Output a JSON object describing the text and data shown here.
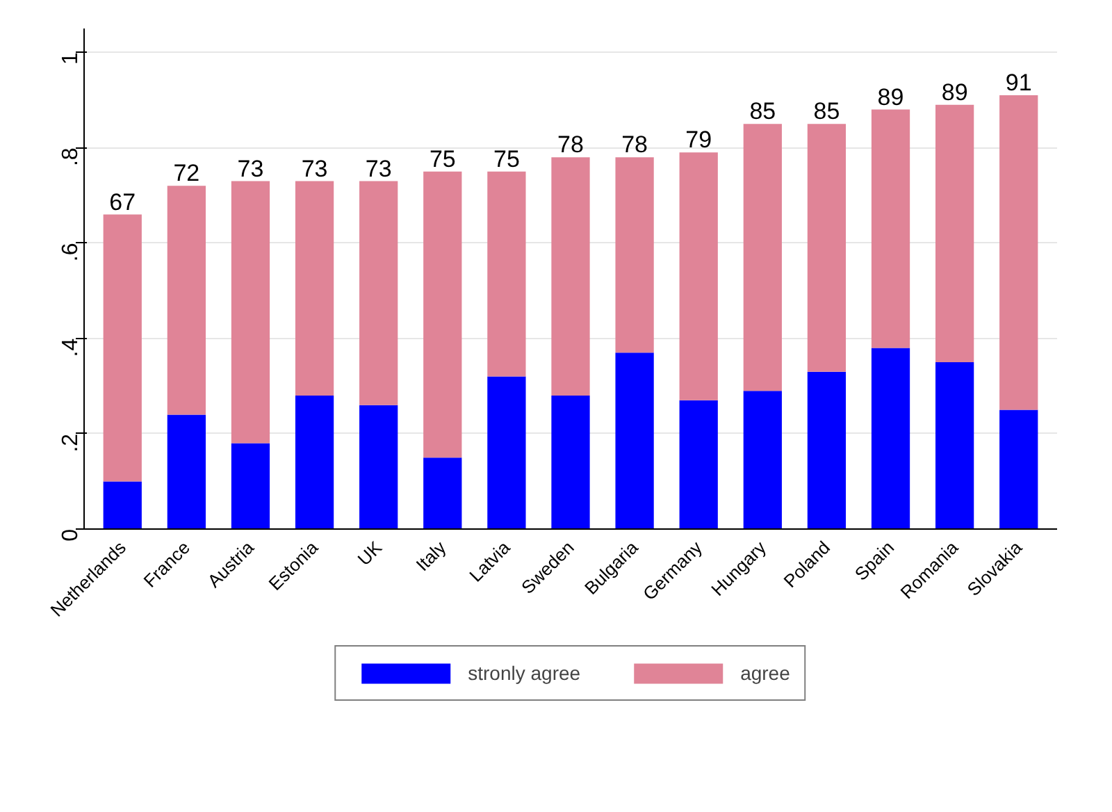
{
  "chart_data": {
    "type": "bar",
    "stacked": true,
    "categories": [
      "Netherlands",
      "France",
      "Austria",
      "Estonia",
      "UK",
      "Italy",
      "Latvia",
      "Sweden",
      "Bulgaria",
      "Germany",
      "Hungary",
      "Poland",
      "Spain",
      "Romania",
      "Slovakia"
    ],
    "series": [
      {
        "name": "stronly agree",
        "color": "#0000ff",
        "values": [
          0.1,
          0.24,
          0.18,
          0.28,
          0.26,
          0.15,
          0.32,
          0.28,
          0.37,
          0.27,
          0.29,
          0.33,
          0.38,
          0.35,
          0.25
        ]
      },
      {
        "name": "agree",
        "color": "#e08497",
        "values": [
          0.56,
          0.48,
          0.55,
          0.45,
          0.47,
          0.6,
          0.43,
          0.5,
          0.41,
          0.52,
          0.56,
          0.52,
          0.5,
          0.54,
          0.66
        ]
      }
    ],
    "totals": [
      "67",
      "72",
      "73",
      "73",
      "73",
      "75",
      "75",
      "78",
      "78",
      "79",
      "85",
      "85",
      "89",
      "89",
      "91"
    ],
    "ylim": [
      0,
      1.05
    ],
    "yticks": [
      0,
      {
        "value": 0.2,
        "label": ".2"
      },
      {
        "value": 0.4,
        "label": ".4"
      },
      {
        "value": 0.6,
        "label": ".6"
      },
      {
        "value": 0.8,
        "label": ".8"
      },
      1
    ],
    "grid": "y",
    "legend": "bottom"
  }
}
